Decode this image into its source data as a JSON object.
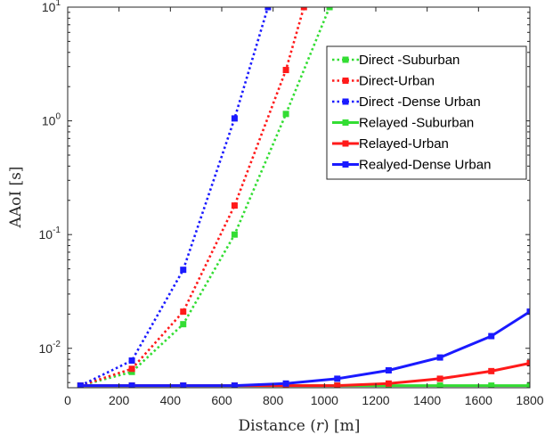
{
  "chart_data": {
    "type": "line",
    "title": "",
    "xlabel_parts": [
      "Distance (",
      "r",
      ") [m]"
    ],
    "ylabel": "AAoI [s]",
    "y_scale": "log",
    "xlim": [
      0,
      1800
    ],
    "ylim": [
      0.0045,
      10
    ],
    "x_ticks": [
      0,
      200,
      400,
      600,
      800,
      1000,
      1200,
      1400,
      1600,
      1800
    ],
    "x_tick_labels": [
      "0",
      "200",
      "400",
      "600",
      "800",
      "1000",
      "1200",
      "1400",
      "1600",
      "1800"
    ],
    "y_ticks": [
      0.01,
      0.1,
      1,
      10
    ],
    "y_tick_labels": [
      {
        "base": "10",
        "exp": "-2"
      },
      {
        "base": "10",
        "exp": "-1"
      },
      {
        "base": "10",
        "exp": "0"
      },
      {
        "base": "10",
        "exp": "1"
      }
    ],
    "grid": false,
    "legend_position": "top-right",
    "series": [
      {
        "name": "Direct -Suburban",
        "color": "#33dd33",
        "style": "dotted",
        "marker": "square",
        "x": [
          50,
          250,
          450,
          650,
          850,
          1020
        ],
        "y": [
          0.0047,
          0.0062,
          0.0163,
          0.1,
          1.15,
          10
        ]
      },
      {
        "name": "Direct-Urban",
        "color": "#ff1a1a",
        "style": "dotted",
        "marker": "square",
        "x": [
          50,
          250,
          450,
          650,
          850,
          920
        ],
        "y": [
          0.0047,
          0.0066,
          0.021,
          0.18,
          2.8,
          10
        ]
      },
      {
        "name": "Direct -Dense Urban",
        "color": "#1a1aff",
        "style": "dotted",
        "marker": "square",
        "x": [
          50,
          250,
          450,
          650,
          780
        ],
        "y": [
          0.0047,
          0.0078,
          0.049,
          1.05,
          10
        ]
      },
      {
        "name": "Relayed -Suburban",
        "color": "#33dd33",
        "style": "solid",
        "marker": "square",
        "x": [
          50,
          250,
          450,
          650,
          850,
          1050,
          1250,
          1450,
          1650,
          1800
        ],
        "y": [
          0.0047,
          0.0047,
          0.0047,
          0.0047,
          0.0047,
          0.0047,
          0.0047,
          0.0047,
          0.0047,
          0.0047
        ]
      },
      {
        "name": "Relayed-Urban",
        "color": "#ff1a1a",
        "style": "solid",
        "marker": "square",
        "x": [
          50,
          250,
          450,
          650,
          850,
          1050,
          1250,
          1450,
          1650,
          1800
        ],
        "y": [
          0.0047,
          0.0047,
          0.0047,
          0.0047,
          0.0047,
          0.0047,
          0.0049,
          0.0054,
          0.0063,
          0.0074
        ]
      },
      {
        "name": "Realyed-Dense Urban",
        "color": "#1a1aff",
        "style": "solid",
        "marker": "square",
        "x": [
          50,
          250,
          450,
          650,
          850,
          1050,
          1250,
          1450,
          1650,
          1800
        ],
        "y": [
          0.0047,
          0.0047,
          0.0047,
          0.0047,
          0.0049,
          0.0054,
          0.0064,
          0.0083,
          0.0128,
          0.021
        ]
      }
    ]
  }
}
